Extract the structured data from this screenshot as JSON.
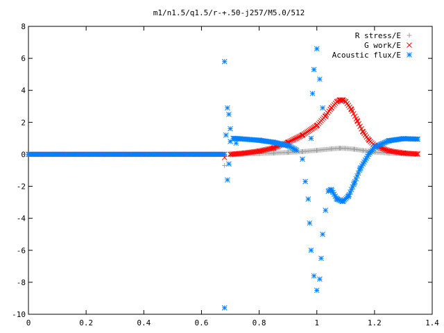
{
  "chart_data": {
    "type": "scatter",
    "title": "m1/n1.5/q1.5/r-+.50-j257/M5.0/512",
    "xlabel": "",
    "ylabel": "",
    "xlim": [
      0,
      1.4
    ],
    "ylim": [
      -10,
      8
    ],
    "xticks": [
      0,
      0.2,
      0.4,
      0.6,
      0.8,
      1,
      1.2,
      1.4
    ],
    "xtick_labels": [
      "0",
      "0.2",
      "0.4",
      "0.6",
      "0.8",
      "1",
      "1.2",
      "1.4"
    ],
    "yticks": [
      -10,
      -8,
      -6,
      -4,
      -2,
      0,
      2,
      4,
      6,
      8
    ],
    "ytick_labels": [
      "-10",
      "-8",
      "-6",
      "-4",
      "-2",
      "0",
      "2",
      "4",
      "6",
      "8"
    ],
    "grid": false,
    "legend_position": "top-right",
    "series": [
      {
        "name": "R stress/E",
        "marker": "plus",
        "color": "#a0a0a0",
        "points": [
          [
            0.68,
            -0.7
          ],
          [
            0.7,
            -0.05
          ],
          [
            0.75,
            0.02
          ],
          [
            0.8,
            0.05
          ],
          [
            0.85,
            0.08
          ],
          [
            0.9,
            0.12
          ],
          [
            0.95,
            0.17
          ],
          [
            1.0,
            0.25
          ],
          [
            1.05,
            0.34
          ],
          [
            1.08,
            0.38
          ],
          [
            1.1,
            0.37
          ],
          [
            1.13,
            0.32
          ],
          [
            1.16,
            0.24
          ],
          [
            1.2,
            0.14
          ],
          [
            1.25,
            0.07
          ],
          [
            1.3,
            0.03
          ],
          [
            1.35,
            0.01
          ]
        ]
      },
      {
        "name": "G work/E",
        "marker": "cross",
        "color": "#ff0000",
        "points": [
          [
            0.68,
            -0.2
          ],
          [
            0.7,
            0.0
          ],
          [
            0.75,
            0.08
          ],
          [
            0.8,
            0.2
          ],
          [
            0.85,
            0.4
          ],
          [
            0.9,
            0.75
          ],
          [
            0.95,
            1.2
          ],
          [
            1.0,
            1.8
          ],
          [
            1.03,
            2.4
          ],
          [
            1.05,
            2.9
          ],
          [
            1.07,
            3.3
          ],
          [
            1.08,
            3.4
          ],
          [
            1.09,
            3.4
          ],
          [
            1.1,
            3.3
          ],
          [
            1.12,
            2.8
          ],
          [
            1.14,
            2.1
          ],
          [
            1.16,
            1.4
          ],
          [
            1.18,
            0.9
          ],
          [
            1.2,
            0.55
          ],
          [
            1.25,
            0.22
          ],
          [
            1.3,
            0.08
          ],
          [
            1.35,
            0.02
          ]
        ]
      },
      {
        "name": "Acoustic flux/E",
        "marker": "star",
        "color": "#0080ff",
        "points": [
          [
            0.68,
            -9.6
          ],
          [
            0.68,
            5.8
          ],
          [
            0.685,
            1.2
          ],
          [
            0.69,
            2.9
          ],
          [
            0.695,
            2.5
          ],
          [
            0.7,
            1.6
          ],
          [
            0.69,
            -1.6
          ],
          [
            0.695,
            -0.6
          ],
          [
            0.7,
            0.8
          ],
          [
            0.71,
            1.0
          ],
          [
            0.72,
            0.7
          ],
          [
            0.73,
            0.98
          ],
          [
            0.75,
            0.95
          ],
          [
            0.8,
            0.88
          ],
          [
            0.85,
            0.75
          ],
          [
            0.9,
            0.55
          ],
          [
            0.93,
            0.25
          ],
          [
            0.95,
            -0.3
          ],
          [
            0.96,
            -1.7
          ],
          [
            0.97,
            -2.8
          ],
          [
            0.975,
            -4.3
          ],
          [
            0.98,
            -6.0
          ],
          [
            0.99,
            -7.6
          ],
          [
            1.0,
            -8.5
          ],
          [
            1.01,
            -7.8
          ],
          [
            1.015,
            -6.5
          ],
          [
            1.02,
            -5.0
          ],
          [
            1.03,
            -3.5
          ],
          [
            1.04,
            -2.3
          ],
          [
            1.05,
            -2.2
          ],
          [
            1.07,
            -2.8
          ],
          [
            1.09,
            -2.95
          ],
          [
            1.11,
            -2.6
          ],
          [
            1.13,
            -1.8
          ],
          [
            1.15,
            -0.9
          ],
          [
            1.18,
            0.0
          ],
          [
            1.2,
            0.45
          ],
          [
            1.25,
            0.85
          ],
          [
            1.3,
            0.98
          ],
          [
            1.35,
            0.95
          ],
          [
            0.98,
            1.0
          ],
          [
            0.985,
            3.8
          ],
          [
            0.99,
            5.3
          ],
          [
            1.0,
            6.6
          ],
          [
            1.01,
            4.7
          ],
          [
            1.02,
            2.9
          ]
        ]
      }
    ]
  }
}
